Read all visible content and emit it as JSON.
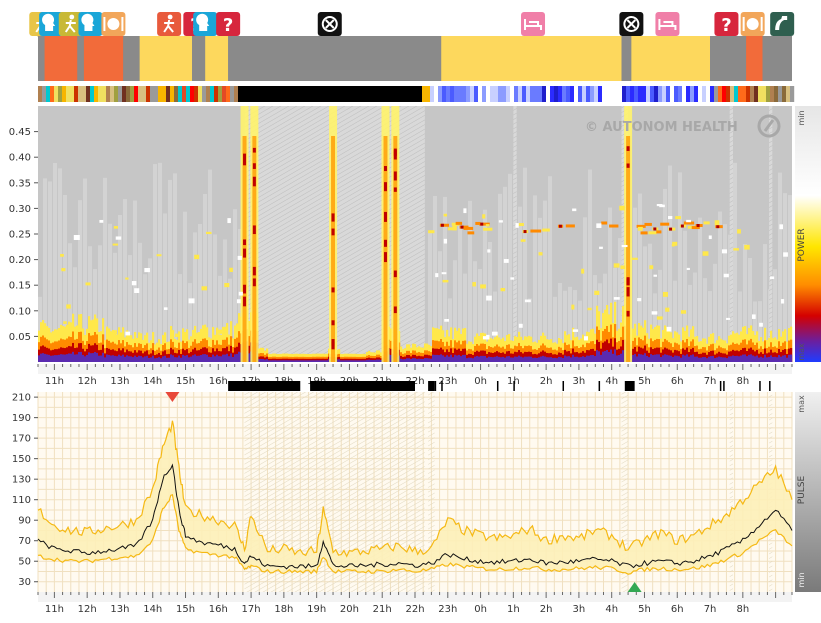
{
  "watermark": "© AUTONOM HEALTH",
  "colors": {
    "sleep": "#fdd85d",
    "activity": "#f26b3a",
    "gray": "#8a8a8a",
    "pulse_line": "#111111",
    "pulse_band": "#f5b915",
    "spectro_bg": "#c6c6c6",
    "marker_red": "#d7263d",
    "marker_green": "#33a853"
  },
  "activity_bar": {
    "segments": [
      {
        "start": 10.5,
        "end": 10.7,
        "color": "gray"
      },
      {
        "start": 10.7,
        "end": 11.7,
        "color": "activity"
      },
      {
        "start": 11.7,
        "end": 11.9,
        "color": "gray"
      },
      {
        "start": 11.9,
        "end": 13.1,
        "color": "activity"
      },
      {
        "start": 13.1,
        "end": 13.6,
        "color": "gray"
      },
      {
        "start": 13.6,
        "end": 15.2,
        "color": "sleep"
      },
      {
        "start": 15.2,
        "end": 15.6,
        "color": "gray"
      },
      {
        "start": 15.6,
        "end": 16.3,
        "color": "sleep"
      },
      {
        "start": 16.3,
        "end": 22.8,
        "color": "gray"
      },
      {
        "start": 22.8,
        "end": 28.3,
        "color": "sleep"
      },
      {
        "start": 28.3,
        "end": 28.6,
        "color": "gray"
      },
      {
        "start": 28.6,
        "end": 31.0,
        "color": "sleep"
      },
      {
        "start": 31.0,
        "end": 32.1,
        "color": "gray"
      },
      {
        "start": 32.1,
        "end": 32.6,
        "color": "activity"
      },
      {
        "start": 32.6,
        "end": 33.5,
        "color": "gray"
      }
    ]
  },
  "event_markers": [
    {
      "time": 10.6,
      "icon": "walk-icon",
      "color": "#e8c547"
    },
    {
      "time": 10.9,
      "icon": "brain-icon",
      "color": "#1aa6d8"
    },
    {
      "time": 11.5,
      "icon": "walk-icon",
      "color": "#c8b936"
    },
    {
      "time": 12.1,
      "icon": "brain-icon",
      "color": "#1aa6d8"
    },
    {
      "time": 12.8,
      "icon": "meal-icon",
      "color": "#f2a65a"
    },
    {
      "time": 14.5,
      "icon": "walk-icon",
      "color": "#e85a3c"
    },
    {
      "time": 15.3,
      "icon": "question-icon",
      "color": "#d7263d"
    },
    {
      "time": 15.6,
      "icon": "brain-icon",
      "color": "#1aa6d8"
    },
    {
      "time": 16.3,
      "icon": "question-icon",
      "color": "#d7263d"
    },
    {
      "time": 19.4,
      "icon": "cancel-icon",
      "color": "#111111"
    },
    {
      "time": 25.6,
      "icon": "bed-icon",
      "color": "#f07fa8"
    },
    {
      "time": 28.6,
      "icon": "cancel-icon",
      "color": "#111111"
    },
    {
      "time": 29.7,
      "icon": "bed-icon",
      "color": "#f07fa8"
    },
    {
      "time": 31.5,
      "icon": "question-icon",
      "color": "#d7263d"
    },
    {
      "time": 32.3,
      "icon": "meal-icon",
      "color": "#f2a65a"
    },
    {
      "time": 33.2,
      "icon": "arm-icon",
      "color": "#2f5f4f"
    }
  ],
  "chart_data": [
    {
      "type": "heatmap",
      "name_hint": "spectrogram",
      "x_range": [
        10.5,
        33.5
      ],
      "ylim": [
        0,
        0.5
      ],
      "yticks": [
        0.05,
        0.1,
        0.15,
        0.2,
        0.25,
        0.3,
        0.35,
        0.4,
        0.45
      ],
      "xticks": [
        "11h",
        "12h",
        "13h",
        "14h",
        "15h",
        "16h",
        "17h",
        "18h",
        "19h",
        "20h",
        "21h",
        "22h",
        "23h",
        "0h",
        "1h",
        "2h",
        "3h",
        "4h",
        "5h",
        "6h",
        "7h",
        "8h"
      ],
      "colorbar_label": "POWER",
      "colorbar_min": "min",
      "colorbar_max": "max",
      "high_power_bursts": [
        16.8,
        17.1,
        19.5,
        21.1,
        21.4,
        28.5
      ],
      "low_frequency_band_level": [
        0.6,
        0.7,
        0.5,
        0.4,
        0.5,
        0.6,
        0.8,
        0.1,
        0.1,
        0.1,
        0.5,
        0.2,
        0.5,
        0.4,
        0.4,
        0.4,
        0.5,
        0.9,
        0.6,
        0.5,
        0.4,
        0.5,
        0.5
      ]
    },
    {
      "type": "line",
      "name_hint": "pulse",
      "x_range": [
        10.5,
        33.5
      ],
      "ylim": [
        20,
        215
      ],
      "yticks": [
        30,
        50,
        70,
        90,
        110,
        130,
        150,
        170,
        190,
        210
      ],
      "xticks": [
        "11h",
        "12h",
        "13h",
        "14h",
        "15h",
        "16h",
        "17h",
        "18h",
        "19h",
        "20h",
        "21h",
        "22h",
        "23h",
        "0h",
        "1h",
        "2h",
        "3h",
        "4h",
        "5h",
        "6h",
        "7h",
        "8h"
      ],
      "side_label": "PULSE",
      "side_max": "max",
      "side_min": "min",
      "x": [
        10.5,
        11.0,
        11.5,
        12.0,
        12.5,
        13.0,
        13.5,
        14.0,
        14.3,
        14.6,
        14.8,
        15.0,
        15.5,
        16.0,
        16.5,
        16.8,
        17.0,
        17.5,
        18.0,
        18.5,
        19.0,
        19.2,
        19.5,
        20.0,
        20.5,
        21.0,
        21.5,
        22.0,
        22.5,
        23.0,
        23.5,
        24.0,
        24.5,
        25.0,
        25.5,
        26.0,
        26.5,
        27.0,
        27.5,
        28.0,
        28.5,
        29.0,
        29.5,
        30.0,
        30.5,
        31.0,
        31.5,
        32.0,
        32.5,
        33.0,
        33.5
      ],
      "series": [
        {
          "role": "median",
          "values": [
            70,
            62,
            60,
            58,
            60,
            62,
            65,
            90,
            130,
            145,
            100,
            75,
            68,
            66,
            62,
            48,
            55,
            45,
            45,
            45,
            45,
            70,
            46,
            45,
            46,
            47,
            48,
            46,
            48,
            57,
            52,
            50,
            49,
            50,
            52,
            48,
            49,
            50,
            52,
            50,
            45,
            48,
            50,
            48,
            50,
            55,
            62,
            70,
            85,
            100,
            80
          ]
        },
        {
          "role": "upper",
          "values": [
            100,
            85,
            80,
            78,
            82,
            85,
            90,
            120,
            160,
            185,
            140,
            100,
            95,
            90,
            85,
            62,
            95,
            60,
            62,
            58,
            60,
            100,
            60,
            58,
            60,
            62,
            65,
            60,
            62,
            90,
            80,
            75,
            72,
            75,
            82,
            70,
            75,
            72,
            80,
            75,
            62,
            70,
            78,
            70,
            75,
            85,
            95,
            110,
            125,
            140,
            110
          ]
        },
        {
          "role": "lower",
          "values": [
            55,
            52,
            50,
            50,
            52,
            54,
            55,
            70,
            100,
            115,
            80,
            62,
            58,
            56,
            54,
            42,
            45,
            40,
            40,
            40,
            40,
            55,
            40,
            40,
            40,
            40,
            42,
            40,
            42,
            47,
            45,
            43,
            42,
            43,
            44,
            42,
            42,
            43,
            44,
            43,
            39,
            42,
            43,
            42,
            43,
            46,
            52,
            58,
            70,
            80,
            65
          ]
        }
      ]
    }
  ],
  "bottom_markers": [
    {
      "type": "max",
      "time": 14.6,
      "color": "marker_red"
    },
    {
      "type": "min",
      "time": 28.7,
      "color": "marker_green"
    }
  ],
  "sleep_blocks": [
    {
      "start": 16.3,
      "end": 18.5
    },
    {
      "start": 18.8,
      "end": 22.0
    },
    {
      "start": 22.4,
      "end": 22.6
    },
    {
      "start": 28.4,
      "end": 28.7
    }
  ]
}
